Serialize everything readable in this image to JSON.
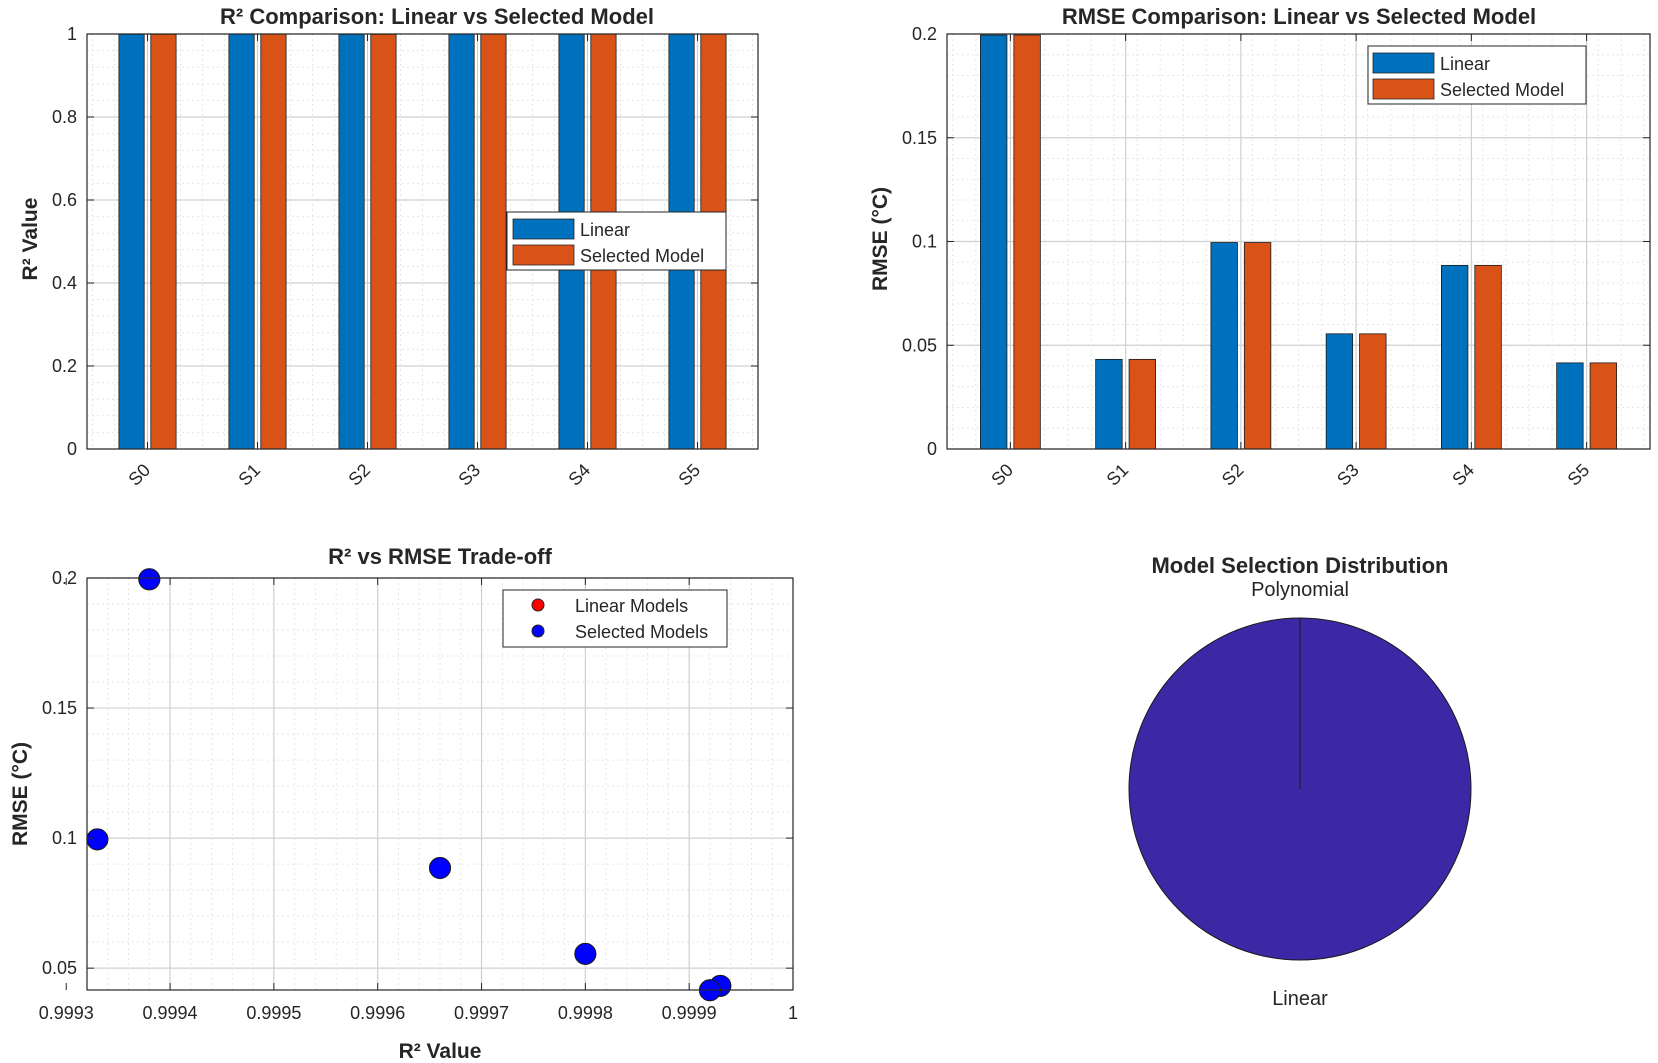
{
  "colors": {
    "linear": "#0072BD",
    "selected": "#D95319",
    "scatter_linear": "#ff0000",
    "scatter_selected": "#0000ff",
    "pie_slice": "#3c28a5",
    "axis": "#262626",
    "grid_major": "#d0d0d0",
    "grid_minor": "#e6e6e6"
  },
  "chart_data": [
    {
      "type": "bar",
      "title": "R² Comparison: Linear vs Selected Model",
      "xlabel": "",
      "ylabel": "R² Value",
      "categories": [
        "S0",
        "S1",
        "S2",
        "S3",
        "S4",
        "S5"
      ],
      "series": [
        {
          "name": "Linear",
          "values": [
            0.9994,
            0.9999,
            0.9993,
            0.9998,
            0.9997,
            0.9999
          ]
        },
        {
          "name": "Selected Model",
          "values": [
            0.9994,
            0.9999,
            0.9993,
            0.9998,
            0.9997,
            0.9999
          ]
        }
      ],
      "ylim": [
        0,
        1
      ],
      "yticks": [
        0,
        0.2,
        0.4,
        0.6,
        0.8,
        1
      ],
      "ytick_labels": [
        "0",
        "0.2",
        "0.4",
        "0.6",
        "0.8",
        "1"
      ],
      "legend": "center-right",
      "grid": true
    },
    {
      "type": "bar",
      "title": "RMSE Comparison: Linear vs Selected Model",
      "xlabel": "",
      "ylabel": "RMSE (°C)",
      "categories": [
        "S0",
        "S1",
        "S2",
        "S3",
        "S4",
        "S5"
      ],
      "series": [
        {
          "name": "Linear",
          "values": [
            0.1995,
            0.0432,
            0.0995,
            0.0555,
            0.0885,
            0.0415
          ]
        },
        {
          "name": "Selected Model",
          "values": [
            0.1995,
            0.0432,
            0.0995,
            0.0555,
            0.0885,
            0.0415
          ]
        }
      ],
      "ylim": [
        0,
        0.2
      ],
      "yticks": [
        0,
        0.05,
        0.1,
        0.15,
        0.2
      ],
      "ytick_labels": [
        "0",
        "0.05",
        "0.1",
        "0.15",
        "0.2"
      ],
      "legend": "top-right",
      "grid": true
    },
    {
      "type": "scatter",
      "title": "R² vs RMSE Trade-off",
      "xlabel": "R² Value",
      "ylabel": "RMSE (°C)",
      "series": [
        {
          "name": "Linear Models",
          "x": [
            0.99938,
            0.99993,
            0.99933,
            0.9998,
            0.99966,
            0.99992
          ],
          "y": [
            0.1995,
            0.0432,
            0.0995,
            0.0555,
            0.0885,
            0.0415
          ]
        },
        {
          "name": "Selected Models",
          "x": [
            0.99938,
            0.99993,
            0.99933,
            0.9998,
            0.99966,
            0.99992
          ],
          "y": [
            0.1995,
            0.0432,
            0.0995,
            0.0555,
            0.0885,
            0.0415
          ]
        }
      ],
      "xlim": [
        0.99932,
        1.0
      ],
      "ylim": [
        0.0416,
        0.2
      ],
      "xticks": [
        0.9993,
        0.9994,
        0.9995,
        0.9996,
        0.9997,
        0.9998,
        0.9999,
        1
      ],
      "xtick_labels": [
        "0.9993",
        "0.9994",
        "0.9995",
        "0.9996",
        "0.9997",
        "0.9998",
        "0.9999",
        "1"
      ],
      "yticks": [
        0.05,
        0.1,
        0.15,
        0.2
      ],
      "ytick_labels": [
        "0.05",
        "0.1",
        "0.15",
        "0.2"
      ],
      "legend": "top-right",
      "grid": true
    },
    {
      "type": "pie",
      "title": "Model Selection Distribution",
      "labels": [
        "Polynomial",
        "Linear"
      ],
      "values": [
        0,
        6
      ]
    }
  ]
}
